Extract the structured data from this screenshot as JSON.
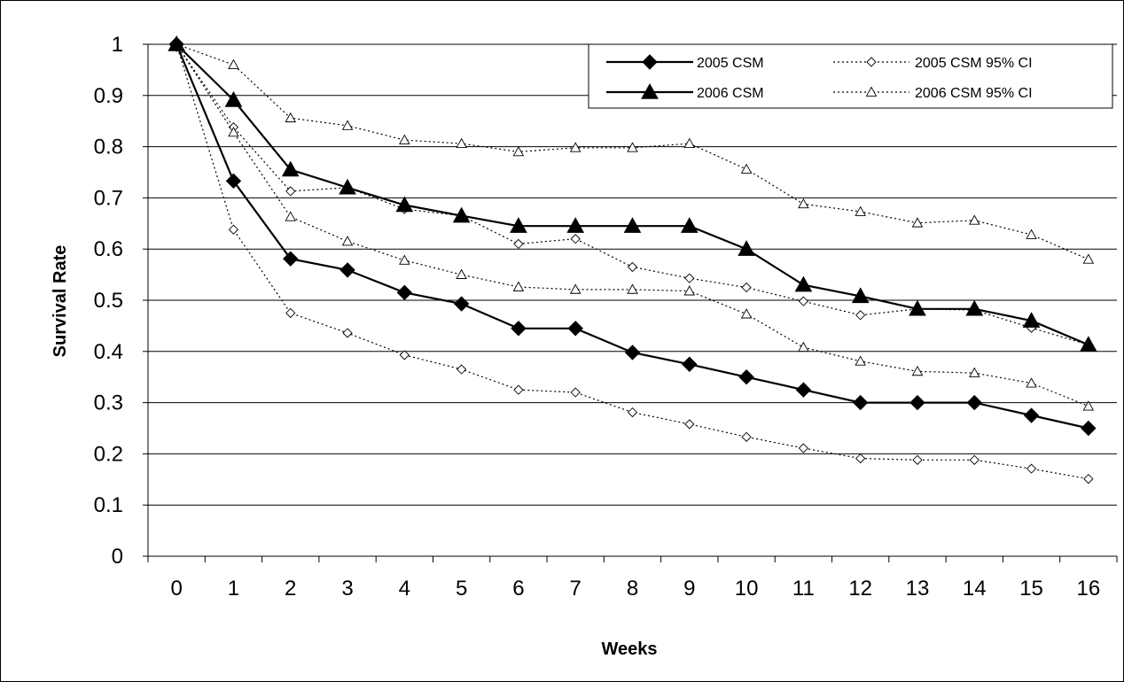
{
  "chart_data": {
    "type": "line",
    "xlabel": "Weeks",
    "ylabel": "Survival Rate",
    "x": [
      0,
      1,
      2,
      3,
      4,
      5,
      6,
      7,
      8,
      9,
      10,
      11,
      12,
      13,
      14,
      15,
      16
    ],
    "x_tick_labels": [
      "0",
      "1",
      "2",
      "3",
      "4",
      "5",
      "6",
      "7",
      "8",
      "9",
      "10",
      "11",
      "12",
      "13",
      "14",
      "15",
      "16"
    ],
    "y_tick_labels": [
      "0",
      "0.1",
      "0.2",
      "0.3",
      "0.4",
      "0.5",
      "0.6",
      "0.7",
      "0.8",
      "0.9",
      "1"
    ],
    "ylim": [
      0,
      1
    ],
    "grid": "horizontal",
    "legend_position": "top-right",
    "series": [
      {
        "name": "2005 CSM",
        "style": "solid",
        "marker": "diamond",
        "filled": true,
        "values": [
          1,
          0.733,
          0.581,
          0.559,
          0.515,
          0.493,
          0.445,
          0.445,
          0.398,
          0.375,
          0.35,
          0.325,
          0.3,
          0.3,
          0.3,
          0.275,
          0.25
        ]
      },
      {
        "name": "2006 CSM",
        "style": "solid",
        "marker": "triangle",
        "filled": true,
        "values": [
          1,
          0.891,
          0.755,
          0.72,
          0.686,
          0.665,
          0.645,
          0.645,
          0.645,
          0.645,
          0.6,
          0.53,
          0.508,
          0.483,
          0.483,
          0.46,
          0.413
        ]
      },
      {
        "name": "2005 CSM 95% CI",
        "style": "dotted",
        "marker": "diamond",
        "filled": false,
        "values": [
          1,
          0.838,
          0.713,
          0.72,
          0.678,
          0.665,
          0.61,
          0.62,
          0.565,
          0.543,
          0.525,
          0.498,
          0.471,
          0.483,
          0.481,
          0.446,
          0.413
        ]
      },
      {
        "name": "2005 CSM 95% CI",
        "legend": false,
        "style": "dotted",
        "marker": "diamond",
        "filled": false,
        "values": [
          1,
          0.638,
          0.475,
          0.436,
          0.393,
          0.365,
          0.325,
          0.32,
          0.281,
          0.258,
          0.233,
          0.211,
          0.191,
          0.188,
          0.188,
          0.171,
          0.151
        ]
      },
      {
        "name": "2006 CSM 95% CI",
        "style": "dotted",
        "marker": "triangle",
        "filled": false,
        "values": [
          1,
          0.96,
          0.856,
          0.841,
          0.813,
          0.806,
          0.79,
          0.798,
          0.798,
          0.806,
          0.756,
          0.688,
          0.673,
          0.651,
          0.656,
          0.628,
          0.58
        ]
      },
      {
        "name": "2006 CSM 95% CI",
        "legend": false,
        "style": "dotted",
        "marker": "triangle",
        "filled": false,
        "values": [
          1,
          0.828,
          0.663,
          0.615,
          0.578,
          0.55,
          0.526,
          0.521,
          0.521,
          0.518,
          0.473,
          0.408,
          0.381,
          0.361,
          0.358,
          0.338,
          0.293
        ]
      }
    ],
    "legend": [
      {
        "label": "2005 CSM",
        "style": "solid",
        "marker": "diamond",
        "filled": true
      },
      {
        "label": "2006 CSM",
        "style": "solid",
        "marker": "triangle",
        "filled": true
      },
      {
        "label": "2005 CSM 95% CI",
        "style": "dotted",
        "marker": "diamond",
        "filled": false
      },
      {
        "label": "2006 CSM 95% CI",
        "style": "dotted",
        "marker": "triangle",
        "filled": false
      }
    ]
  }
}
